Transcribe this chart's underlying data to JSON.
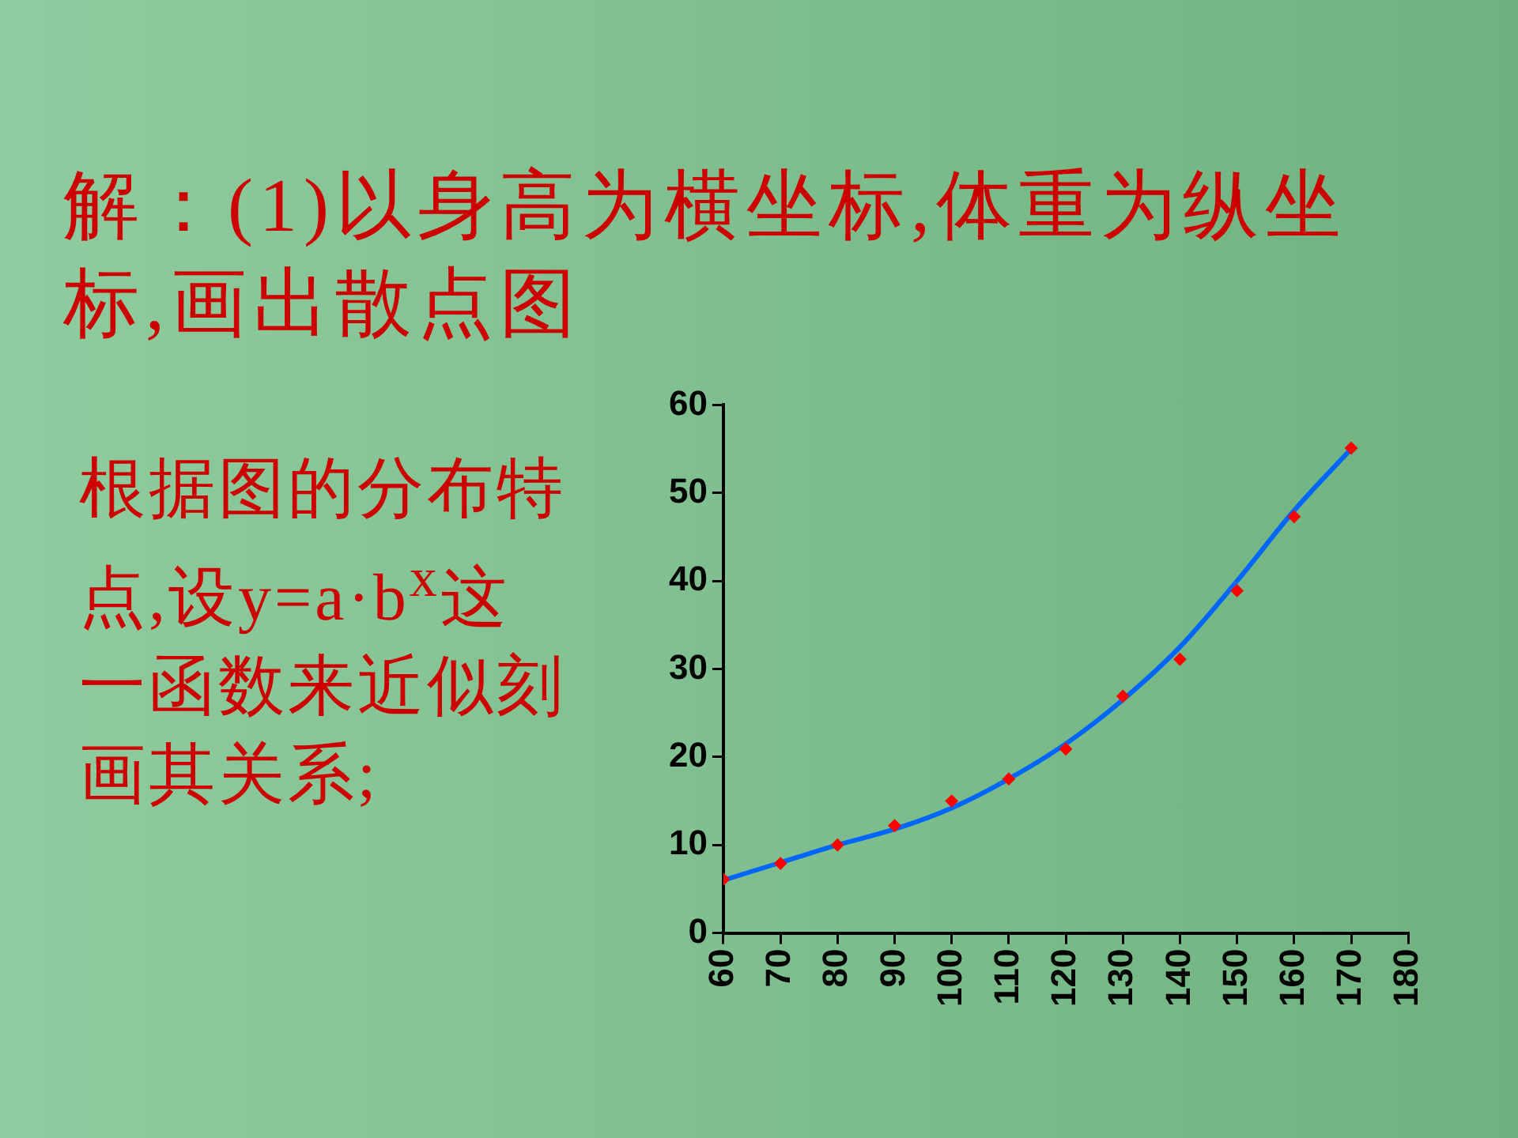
{
  "chart_data": {
    "type": "scatter",
    "title": "解：(1)以身高为横坐标,体重为纵坐标,画出散点图",
    "annotations": [
      "根据图的分布特点,设y=a·b$^{x}$这一函数来近似刻画其关系;"
    ],
    "x": [
      60,
      70,
      80,
      90,
      100,
      110,
      120,
      130,
      140,
      150,
      160,
      170
    ],
    "series": [
      {
        "color": "#ff0000",
        "marker": "diamond",
        "values": [
          6.1,
          7.9,
          10,
          12.2,
          15,
          17.5,
          20.9,
          26.9,
          31.1,
          38.9,
          47.3,
          55.1
        ]
      },
      {
        "type": "line",
        "color": "#0066ff",
        "marker": "none",
        "line_style": "solid",
        "x": [
          60,
          70,
          80,
          90,
          100,
          110,
          120,
          130,
          140,
          150,
          160,
          170
        ],
        "values": [
          6,
          8,
          10,
          11.8,
          14.2,
          17.5,
          21.5,
          26.5,
          32.5,
          40,
          48,
          55
        ]
      }
    ],
    "xlim": [
      60,
      180
    ],
    "xticks": [
      60,
      70,
      80,
      90,
      100,
      110,
      120,
      130,
      140,
      150,
      160,
      170,
      180
    ],
    "ylim": [
      0,
      60
    ],
    "yticks": [
      0,
      10,
      20,
      30,
      40,
      50,
      60
    ],
    "grid": false,
    "legend": false
  }
}
